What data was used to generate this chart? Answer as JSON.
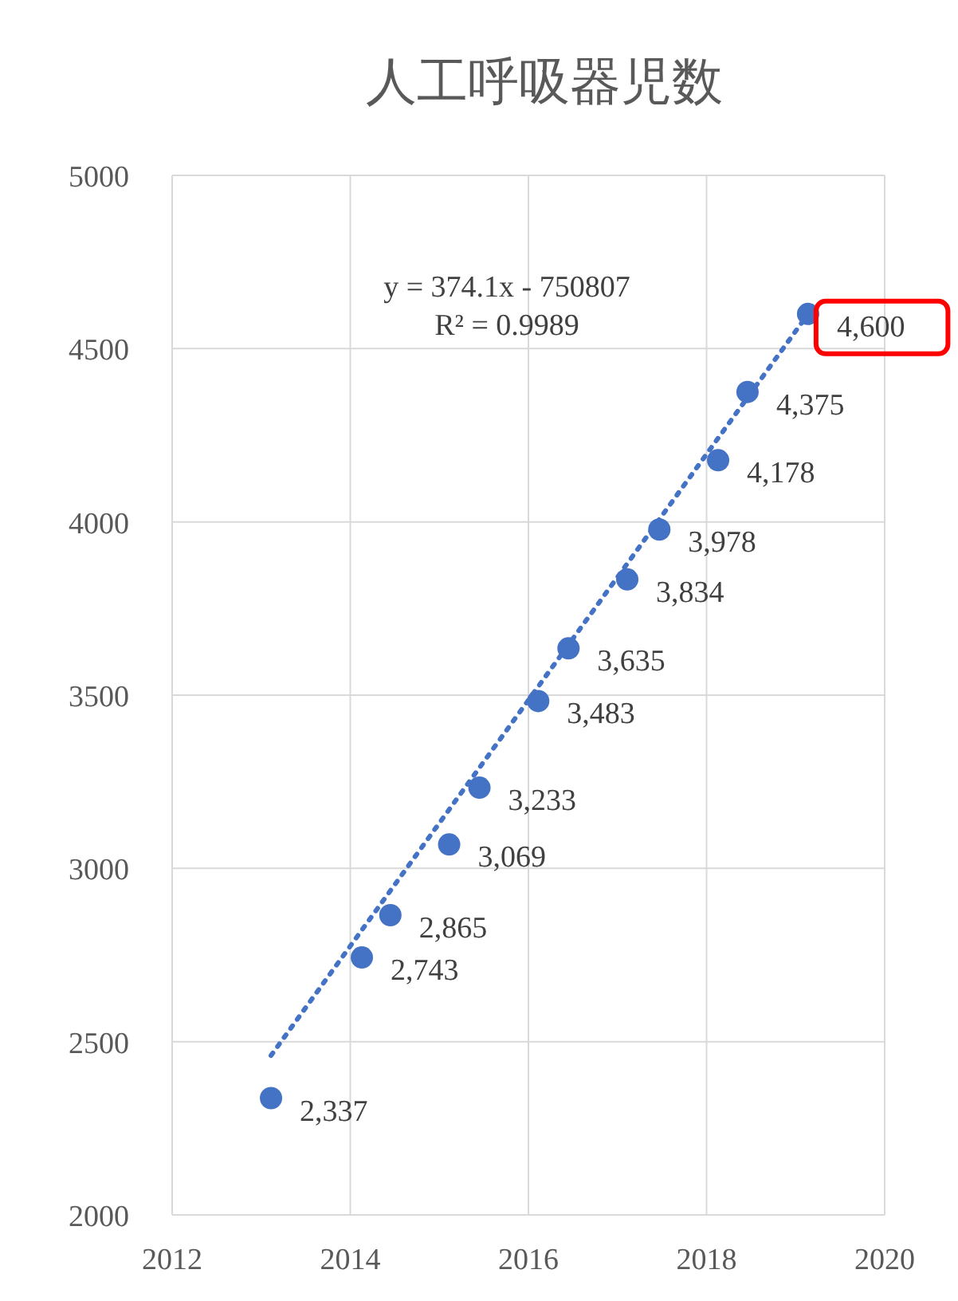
{
  "chart_data": {
    "type": "scatter",
    "title": "人工呼吸器児数",
    "series": [
      {
        "color": "#4472c4",
        "marker": "circle",
        "x": [
          2013.11,
          2014.13,
          2014.45,
          2015.11,
          2015.45,
          2016.11,
          2016.45,
          2017.11,
          2017.47,
          2018.13,
          2018.46,
          2019.14
        ],
        "values": [
          2337,
          2743,
          2865,
          3069,
          3233,
          3483,
          3635,
          3834,
          3978,
          4178,
          4375,
          4600
        ],
        "value_labels": [
          "2,337",
          "2,743",
          "2,865",
          "3,069",
          "3,233",
          "3,483",
          "3,635",
          "3,834",
          "3,978",
          "4,178",
          "4,375",
          "4,600"
        ]
      },
      {
        "type": "line",
        "color": "#4472c4",
        "line_style": "dotted",
        "marker": "none",
        "x": [
          2013.11,
          2019.14
        ],
        "values": [
          2460,
          4600
        ]
      }
    ],
    "xlim": [
      2012,
      2020
    ],
    "xticks": [
      2012,
      2014,
      2016,
      2018,
      2020
    ],
    "ylim": [
      2000,
      5000
    ],
    "yticks": [
      2000,
      2500,
      3000,
      3500,
      4000,
      4500,
      5000
    ],
    "grid": true,
    "annotations": [
      "y = 374.1x - 750807",
      "R² = 0.9989"
    ]
  }
}
